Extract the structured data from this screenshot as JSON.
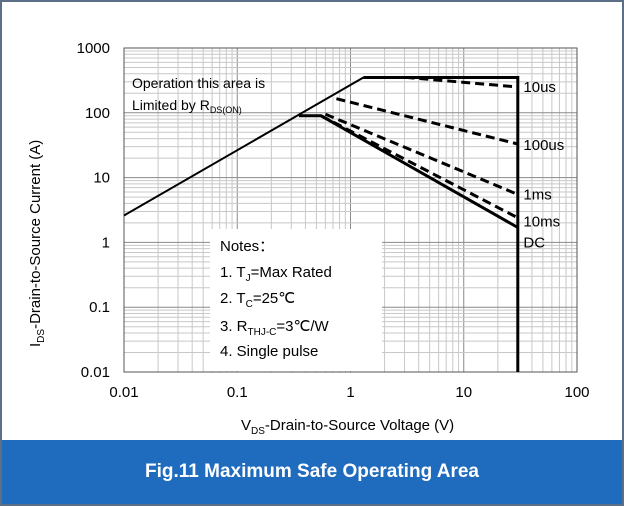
{
  "caption": "Fig.11 Maximum Safe Operating Area",
  "chart_data": {
    "type": "line",
    "title": "",
    "xscale": "log",
    "yscale": "log",
    "xlim": [
      0.01,
      100
    ],
    "ylim": [
      0.01,
      1000
    ],
    "grid": true,
    "x_ticks": [
      "0.01",
      "0.1",
      "1",
      "10",
      "100"
    ],
    "y_ticks": [
      "0.01",
      "0.1",
      "1",
      "10",
      "100",
      "1000"
    ],
    "xlabel": {
      "main": "V",
      "sub": "DS",
      "rest": "-Drain-to-Source Voltage  (V)"
    },
    "ylabel": {
      "main": "I",
      "sub": "DS",
      "rest": "-Drain-to-Source Current (A)"
    },
    "rdson_limit": {
      "x": [
        0.01,
        1.3
      ],
      "y": [
        2.6,
        350
      ]
    },
    "rdson_note": {
      "line1": "Operation this area is",
      "line2_main": "Limited  by  R",
      "line2_sub": "DS(ON)"
    },
    "vds_limit": 30,
    "series": [
      {
        "name": "10us",
        "style": "dash",
        "x": [
          1.3,
          3.2,
          30
        ],
        "y": [
          350,
          350,
          250
        ]
      },
      {
        "name": "100us",
        "style": "dash",
        "x": [
          0.75,
          30
        ],
        "y": [
          165,
          33
        ]
      },
      {
        "name": "1ms",
        "style": "dash",
        "x": [
          0.6,
          30
        ],
        "y": [
          95,
          5.5
        ]
      },
      {
        "name": "10ms",
        "style": "dash",
        "x": [
          0.55,
          30
        ],
        "y": [
          90,
          2.4
        ]
      },
      {
        "name": "DC",
        "style": "solid",
        "x": [
          0.35,
          0.55,
          30
        ],
        "y": [
          90,
          90,
          1.7
        ]
      }
    ],
    "series_label_anchors": [
      {
        "name": "10us",
        "x": 31,
        "y": 250
      },
      {
        "name": "100us",
        "x": 31,
        "y": 32
      },
      {
        "name": "1ms",
        "x": 31,
        "y": 5.5
      },
      {
        "name": "10ms",
        "x": 31,
        "y": 2.1
      },
      {
        "name": "DC",
        "x": 31,
        "y": 1.0
      }
    ],
    "power_limit": {
      "x": [
        1.3,
        30,
        30,
        30
      ],
      "y": [
        350,
        350,
        250,
        0.01
      ]
    },
    "notes": {
      "title": "Notes：",
      "items": [
        {
          "main": "1. T",
          "sub": "J",
          "rest": "=Max Rated"
        },
        {
          "main": "2. T",
          "sub": "C",
          "rest": "=25℃"
        },
        {
          "main": "3. R",
          "sub": "THJ-C",
          "rest": "=3℃/W"
        },
        {
          "main": "4. Single pulse",
          "sub": "",
          "rest": ""
        }
      ]
    }
  }
}
